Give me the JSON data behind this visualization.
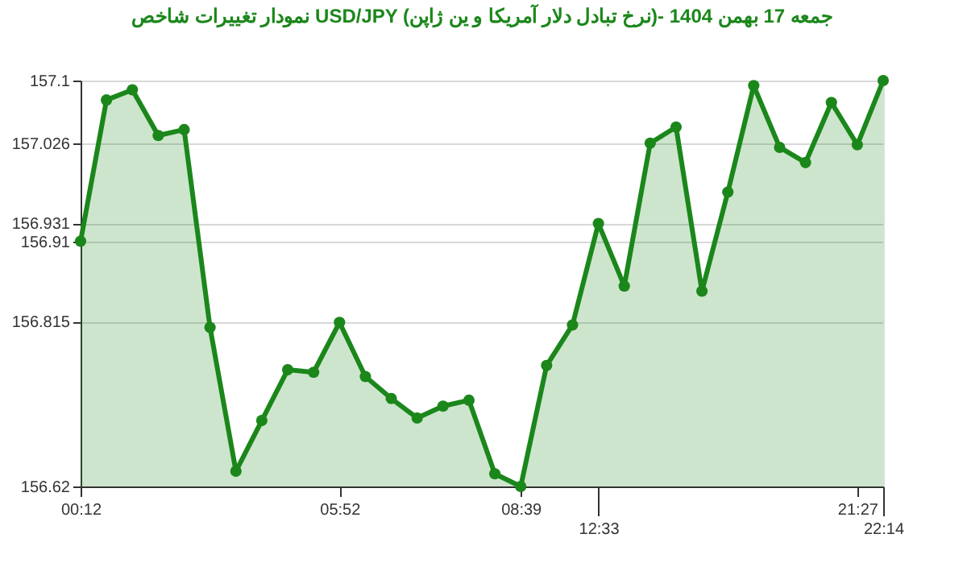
{
  "chart_data": {
    "type": "area",
    "title": "نمودار تغییرات شاخص USD/JPY (نرخ تبادل دلار آمریکا و ین ژاپن)- جمعه  17 بهمن 1404",
    "categories": [
      "00:12",
      null,
      null,
      null,
      null,
      null,
      null,
      null,
      null,
      null,
      "05:52",
      null,
      null,
      null,
      null,
      null,
      null,
      "08:39",
      null,
      null,
      "12:33",
      null,
      null,
      null,
      null,
      null,
      null,
      null,
      null,
      null,
      "21:27",
      "22:14"
    ],
    "series": [
      {
        "color": "#1b871b",
        "values": [
          156.91,
          157.077,
          157.089,
          157.035,
          157.042,
          156.808,
          156.638,
          156.698,
          156.758,
          156.755,
          156.814,
          156.75,
          156.724,
          156.701,
          156.715,
          156.722,
          156.635,
          156.62,
          156.763,
          156.811,
          156.931,
          156.857,
          157.026,
          157.045,
          156.851,
          156.968,
          157.094,
          157.021,
          157.003,
          157.074,
          157.024,
          157.1
        ]
      }
    ],
    "ylim": [
      156.62,
      157.1
    ],
    "yticks": [
      156.62,
      156.815,
      156.91,
      156.931,
      157.026,
      157.1
    ],
    "grid": "y",
    "marker": "circle",
    "line_style": "solid"
  }
}
